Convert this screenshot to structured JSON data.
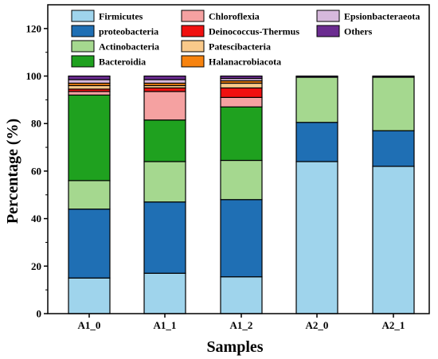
{
  "chart_data": {
    "type": "bar",
    "stacked": true,
    "title": "",
    "xlabel": "Samples",
    "ylabel": "Percentage (%)",
    "ylim": [
      0,
      130
    ],
    "yticks": [
      0,
      20,
      40,
      60,
      80,
      100,
      120
    ],
    "grid": false,
    "legend_placement": "top",
    "categories": [
      "A1_0",
      "A1_1",
      "A1_2",
      "A2_0",
      "A2_1"
    ],
    "series": [
      {
        "name": "Firmicutes",
        "color": "#9fd4ec",
        "values": [
          15,
          17,
          15.5,
          64,
          62
        ]
      },
      {
        "name": "proteobacteria",
        "color": "#1f6fb4",
        "values": [
          29,
          30,
          32.5,
          16.5,
          15
        ]
      },
      {
        "name": "Actinobacteria",
        "color": "#a5d88f",
        "values": [
          12,
          17,
          16.5,
          19,
          22.5
        ]
      },
      {
        "name": "Bacteroidia",
        "color": "#1fa11f",
        "values": [
          36,
          17.5,
          22.5,
          0,
          0
        ]
      },
      {
        "name": "Chloroflexia",
        "color": "#f5a1a1",
        "values": [
          1.5,
          12,
          4,
          0,
          0
        ]
      },
      {
        "name": "Deinococcus-Thermus",
        "color": "#f01010",
        "values": [
          1,
          1.5,
          4,
          0,
          0
        ]
      },
      {
        "name": "Patescibacteria",
        "color": "#f9c98a",
        "values": [
          1.5,
          1,
          2,
          0,
          0
        ]
      },
      {
        "name": "Halanacrobiacota",
        "color": "#f7830f",
        "values": [
          1,
          1,
          1,
          0,
          0
        ]
      },
      {
        "name": "Epsionbacteraeota",
        "color": "#d6b8dc",
        "values": [
          1.5,
          1.5,
          1,
          0,
          0
        ]
      },
      {
        "name": "Others",
        "color": "#6b2c90",
        "values": [
          1.5,
          1.5,
          1,
          0.5,
          0.5
        ]
      }
    ]
  }
}
